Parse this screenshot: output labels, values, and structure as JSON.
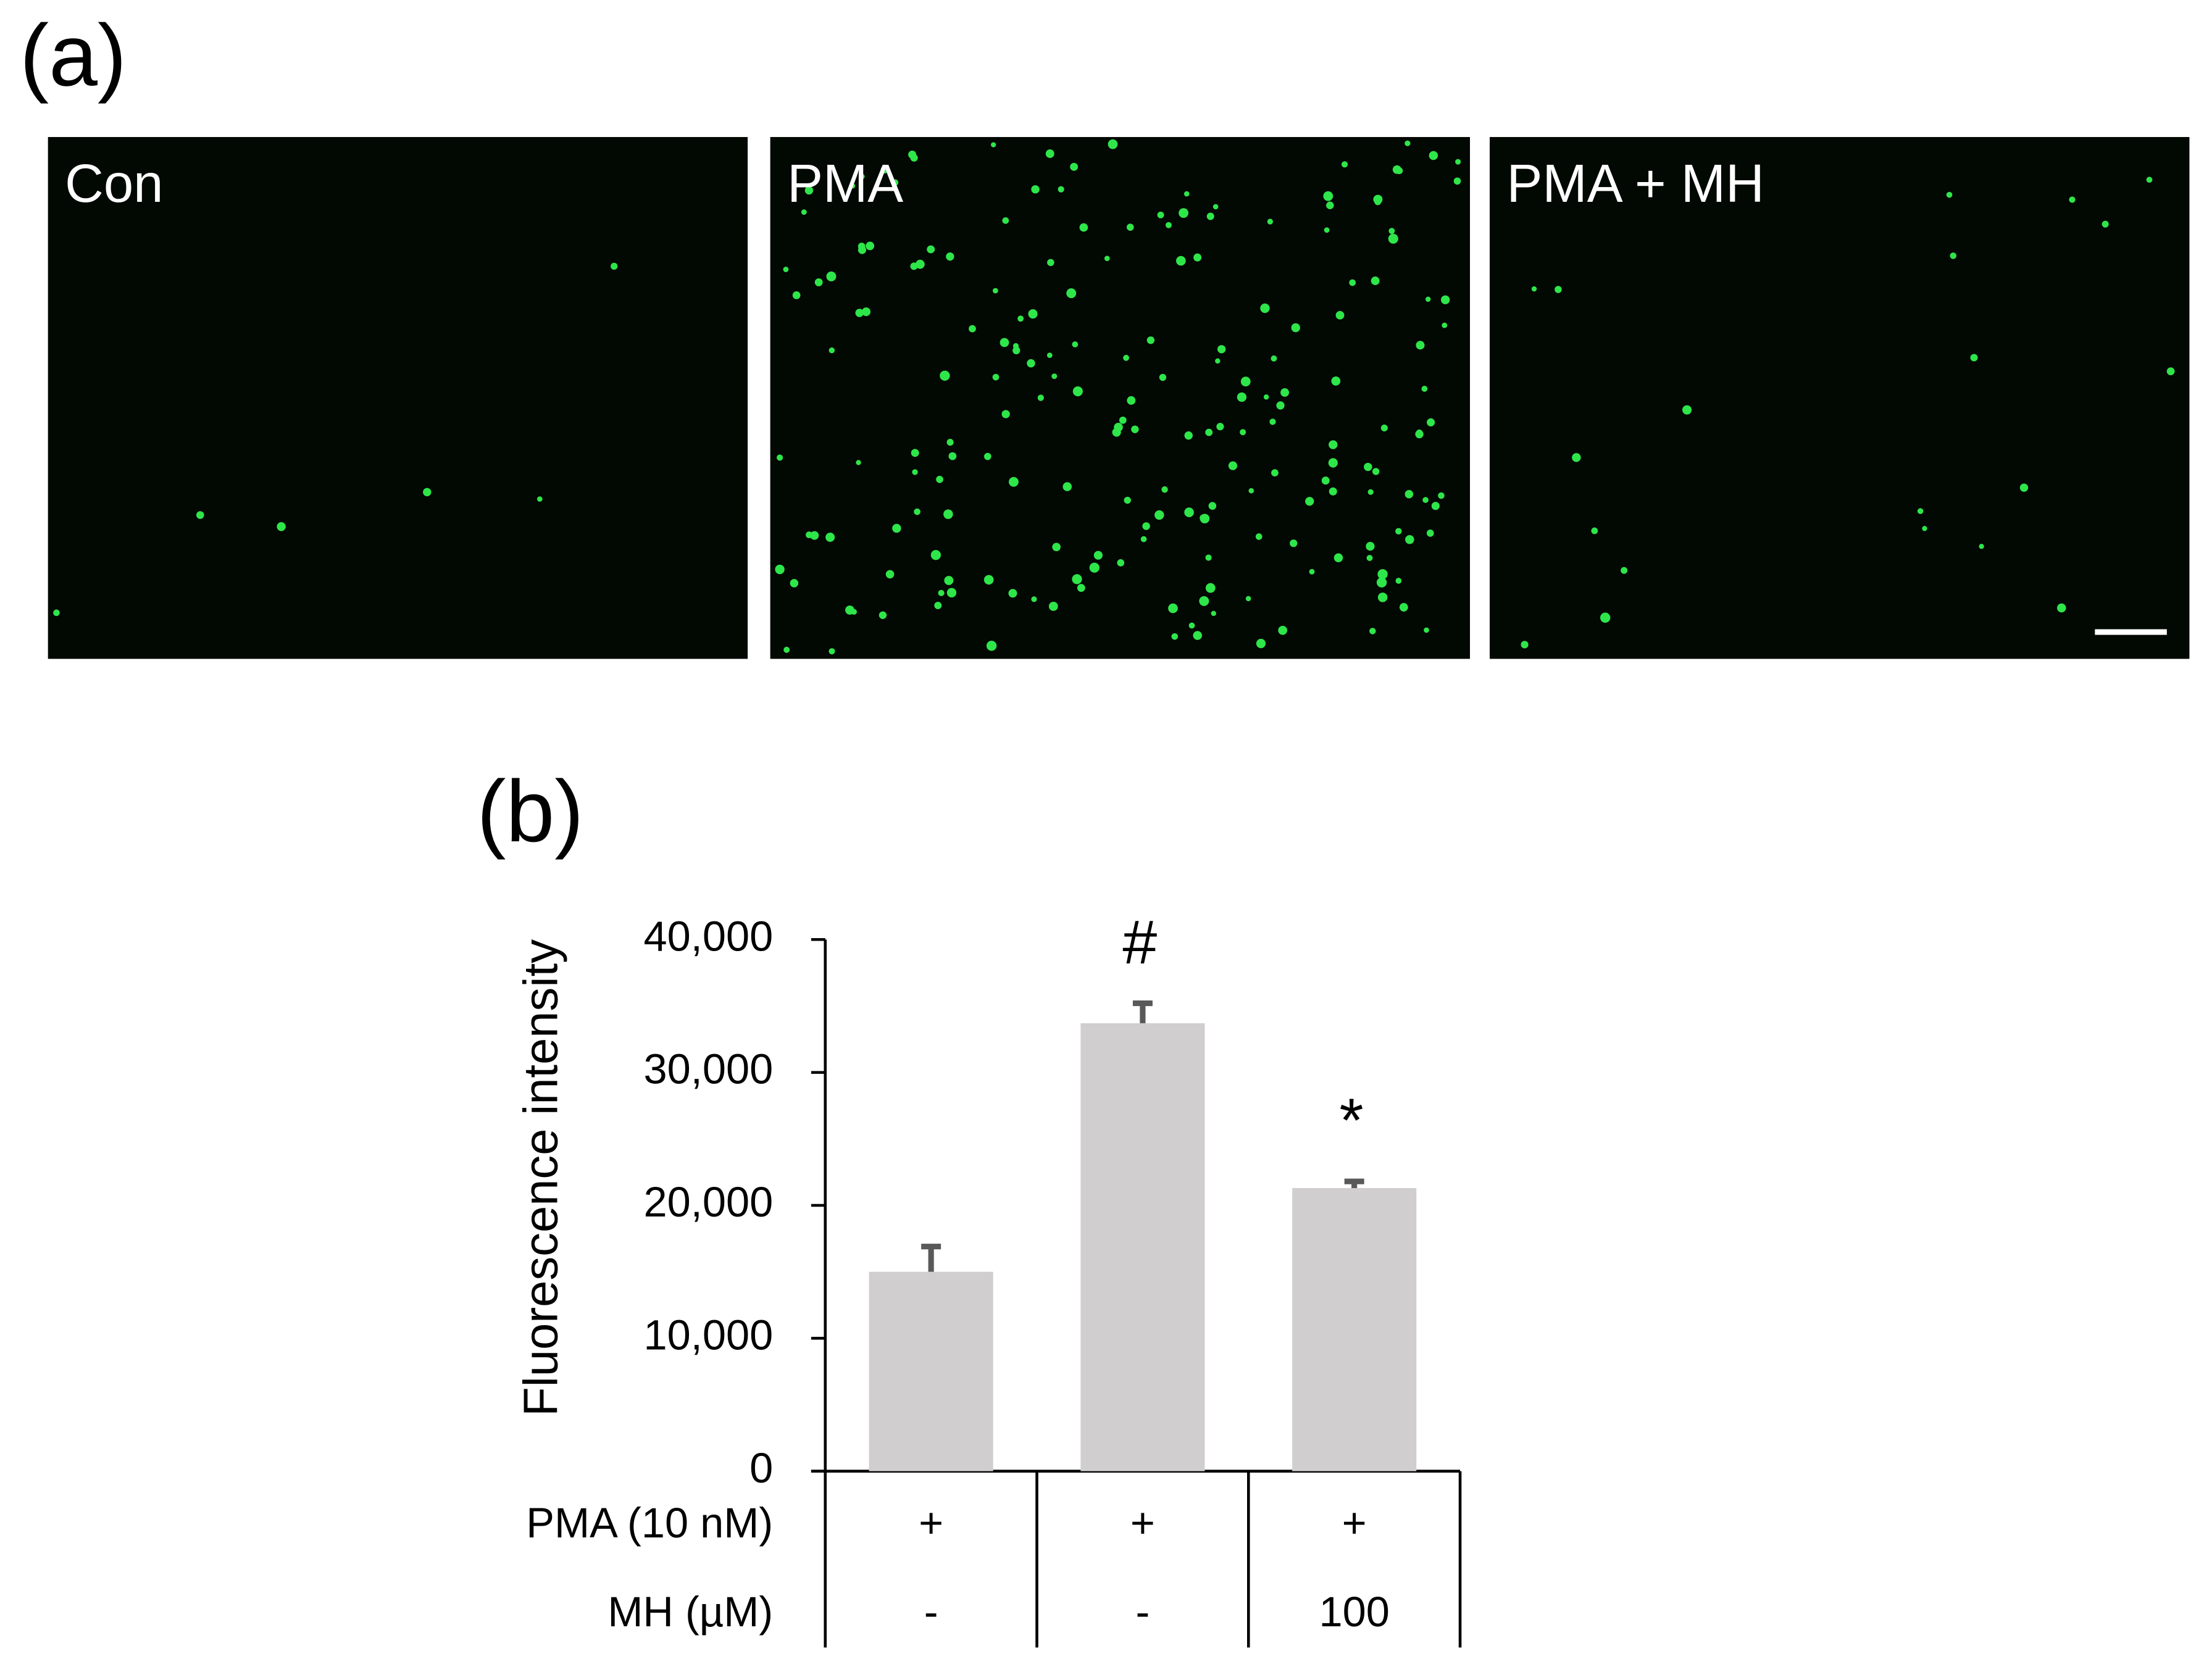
{
  "figure_a": {
    "panel_label": "(a)",
    "panels": [
      "Con",
      "PMA",
      "PMA + MH"
    ]
  },
  "chart_data": {
    "type": "bar",
    "panel_label": "(b)",
    "y_label": "Fluorescence intensity",
    "category_rows": [
      {
        "name": "PMA (10 nM)",
        "labels": [
          "+",
          "+",
          "+"
        ]
      },
      {
        "name": "MH (µM)",
        "labels": [
          "-",
          "-",
          "100"
        ]
      }
    ],
    "values": [
      15000,
      33700,
      21300
    ],
    "errors": [
      1900,
      1500,
      500
    ],
    "value_annotations": [
      null,
      "#",
      "*"
    ],
    "color": "#d0cecf",
    "error_color": "#595959",
    "ylim": [
      0,
      40000
    ],
    "yticks": [
      0,
      {
        "value": 10000,
        "label": "10,000"
      },
      {
        "value": 20000,
        "label": "20,000"
      },
      {
        "value": 30000,
        "label": "30,000"
      },
      {
        "value": 40000,
        "label": "40,000"
      }
    ]
  }
}
